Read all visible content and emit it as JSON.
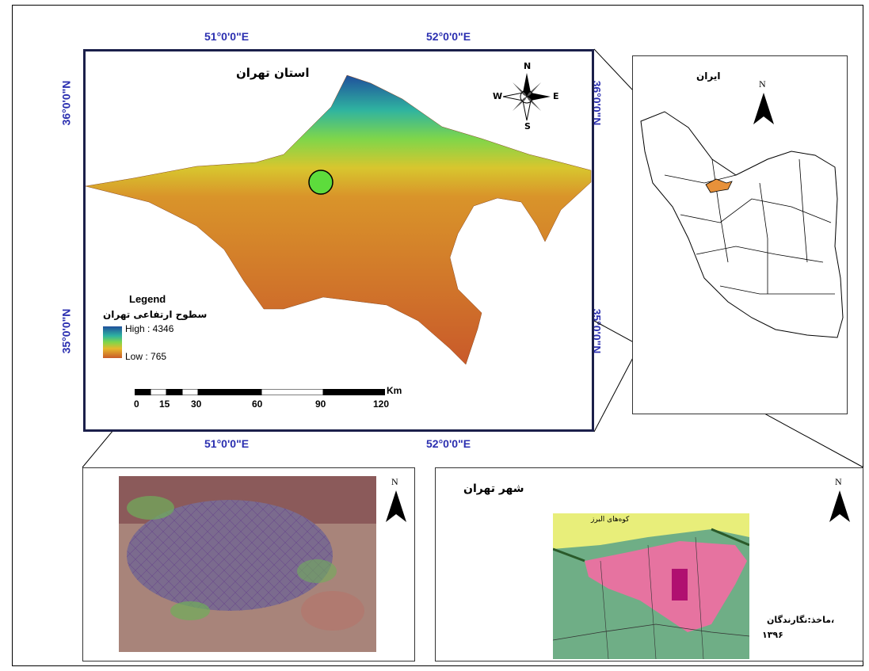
{
  "coords": {
    "top_left": "51°0'0\"E",
    "top_right": "52°0'0\"E",
    "bottom_left": "51°0'0\"E",
    "bottom_right": "52°0'0\"E",
    "left_top": "36°0'0\"N",
    "left_bottom": "35°0'0\"N",
    "right_top": "36°0'0\"N",
    "right_bottom": "35°0'0\"N"
  },
  "main_map": {
    "title": "استان تهران",
    "compass": {
      "n": "N",
      "s": "S",
      "e": "E",
      "w": "W"
    },
    "legend": {
      "heading": "Legend",
      "subtitle": "سطوح ارتفاعی تهران",
      "high": "High : 4346",
      "low": "Low : 765",
      "colors": [
        "#1f4f9c",
        "#2fb3a0",
        "#7fd64a",
        "#e6b92c",
        "#d9842a",
        "#c95a2a"
      ]
    },
    "scale": {
      "unit": "Km",
      "ticks": [
        "0",
        "15",
        "30",
        "60",
        "90",
        "120"
      ]
    }
  },
  "iran_map": {
    "title": "ایران",
    "north": "N"
  },
  "satellite_panel": {
    "north": "N"
  },
  "city_map": {
    "title": "شهر تهران",
    "mountain_label": "کوه‌های البرز",
    "north": "N",
    "source": "ماخذ:نگارندگان،",
    "year": "۱۳۹۶"
  }
}
